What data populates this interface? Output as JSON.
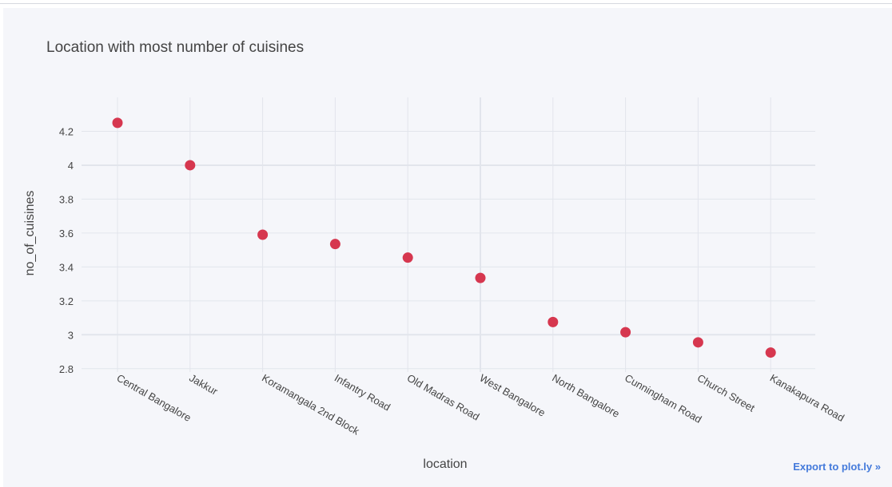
{
  "chart_data": {
    "type": "scatter",
    "title": "Location with most number of cuisines",
    "xlabel": "location",
    "ylabel": "no_of_cuisines",
    "categories": [
      "Central Bangalore",
      "Jakkur",
      "Koramangala 2nd Block",
      "Infantry Road",
      "Old Madras Road",
      "West Bangalore",
      "North Bangalore",
      "Cunningham Road",
      "Church Street",
      "Kanakapura Road"
    ],
    "values": [
      4.25,
      4.0,
      3.59,
      3.535,
      3.455,
      3.335,
      3.075,
      3.015,
      2.955,
      2.895
    ],
    "ylim": [
      2.78,
      4.4
    ],
    "yticks": [
      2.8,
      3,
      3.2,
      3.4,
      3.6,
      3.8,
      4,
      4.2
    ],
    "ytick_labels": [
      "2.8",
      "3",
      "3.2",
      "3.4",
      "3.6",
      "3.8",
      "4",
      "4.2"
    ],
    "marker_color": "#d6374f",
    "grid": true
  },
  "colors": {
    "plot_bg": "#f5f6fa",
    "grid": "#e2e5ec",
    "axis_text": "#444444",
    "accent": "#447adb"
  },
  "export_link": "Export to plot.ly »"
}
